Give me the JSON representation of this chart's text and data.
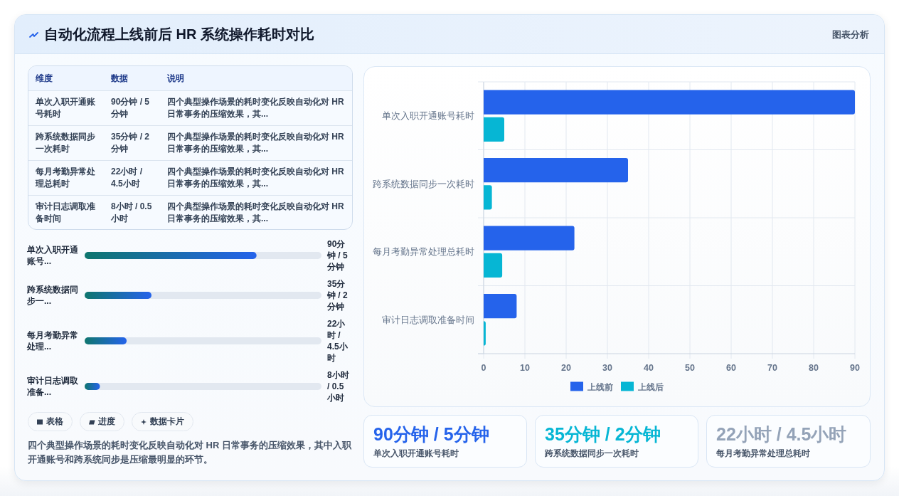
{
  "chart_data": [
    {
      "type": "other",
      "title": "自动化流程上线前后 HR 系统操作耗时对比",
      "annotations": [
        "图表分析"
      ]
    },
    {
      "type": "other",
      "annotations": [
        "维度",
        "数据",
        "说明",
        "单次入职开通账号耗时",
        "90分钟 / 5分钟",
        "四个典型操作场景的耗时变化反映自动化对 HR 日常事务的压缩效果，其...",
        "跨系统数据同步一次耗时",
        "35分钟 / 2分钟",
        "四个典型操作场景的耗时变化反映自动化对 HR 日常事务的压缩效果，其...",
        "每月考勤异常处理总耗时",
        "22小时 / 4.5小时",
        "四个典型操作场景的耗时变化反映自动化对 HR 日常事务的压缩效果，其...",
        "审计日志调取准备时间",
        "8小时 / 0.5小时",
        "四个典型操作场景的耗时变化反映自动化对 HR 日常事务的压缩效果，其..."
      ]
    },
    {
      "type": "bar",
      "orientation": "horizontal",
      "categories": [
        "单次入职开通账号...",
        "跨系统数据同步一...",
        "每月考勤异常处理...",
        "审计日志调取准备..."
      ],
      "series": [
        {
          "color": "#2563eb",
          "values": [
            90,
            35,
            22,
            8
          ],
          "value_labels": [
            "90分钟 / 5分钟",
            "35分钟 / 2分钟",
            "22小时 / 4.5小时",
            "8小时 / 0.5小时"
          ]
        }
      ],
      "xlim": [
        0,
        124
      ],
      "tick_labels": "y"
    },
    {
      "type": "other",
      "annotations": [
        "表格",
        "进度",
        "数据卡片"
      ]
    },
    {
      "type": "other",
      "annotations": [
        "四个典型操作场景的耗时变化反映自动化对 HR 日常事务的压缩效果，其中入职开通账号和跨系统同步是压缩最明显的环节。"
      ]
    },
    {
      "type": "bar",
      "orientation": "horizontal",
      "categories": [
        "单次入职开通账号耗时",
        "跨系统数据同步一次耗时",
        "每月考勤异常处理总耗时",
        "审计日志调取准备时间"
      ],
      "series": [
        {
          "name": "上线前",
          "color": "#2563eb",
          "values": [
            90,
            35,
            22,
            8
          ]
        },
        {
          "name": "上线后",
          "color": "#06b6d4",
          "values": [
            5,
            2,
            4.5,
            0.5
          ]
        }
      ],
      "xlim": [
        0,
        90
      ],
      "xticks": [
        0,
        10,
        20,
        30,
        40,
        50,
        60,
        70,
        80,
        90
      ],
      "grid": true,
      "legend": "bottom"
    },
    {
      "type": "other",
      "title": "90分钟 / 5分钟",
      "subtitle": "单次入职开通账号耗时",
      "color": "#2563eb"
    },
    {
      "type": "other",
      "title": "35分钟 / 2分钟",
      "subtitle": "跨系统数据同步一次耗时",
      "color": "#06b6d4"
    },
    {
      "type": "other",
      "title": "22小时 / 4.5小时",
      "subtitle": "每月考勤异常处理总耗时",
      "color": "#94a3b8"
    }
  ]
}
